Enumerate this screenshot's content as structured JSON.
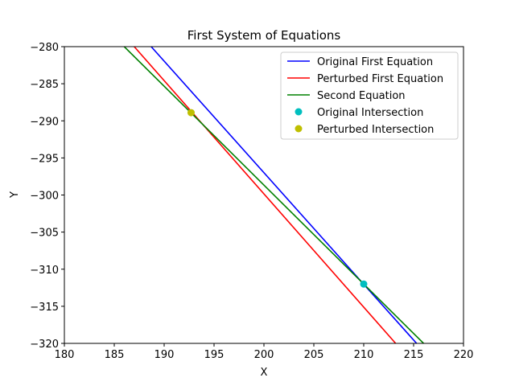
{
  "chart_data": {
    "type": "line",
    "title": "First System of Equations",
    "xlabel": "X",
    "ylabel": "Y",
    "xlim": [
      180,
      220
    ],
    "ylim": [
      -320,
      -280
    ],
    "xticks": [
      180,
      185,
      190,
      195,
      200,
      205,
      210,
      215,
      220
    ],
    "yticks": [
      -280,
      -285,
      -290,
      -295,
      -300,
      -305,
      -310,
      -315,
      -320
    ],
    "grid": false,
    "legend_position": "top-right",
    "series": [
      {
        "name": "Original First Equation",
        "kind": "line",
        "color": "#0000ff",
        "x": [
          188.7,
          215.3
        ],
        "y": [
          -280,
          -320
        ]
      },
      {
        "name": "Perturbed First Equation",
        "kind": "line",
        "color": "#ff0000",
        "x": [
          187.0,
          213.2
        ],
        "y": [
          -280,
          -320
        ]
      },
      {
        "name": "Second Equation",
        "kind": "line",
        "color": "#008000",
        "x": [
          186.0,
          216.0
        ],
        "y": [
          -280,
          -320
        ]
      },
      {
        "name": "Original Intersection",
        "kind": "point",
        "color": "#00bfbf",
        "x": [
          210.0
        ],
        "y": [
          -312.0
        ]
      },
      {
        "name": "Perturbed Intersection",
        "kind": "point",
        "color": "#bfbf00",
        "x": [
          192.7
        ],
        "y": [
          -288.9
        ]
      }
    ]
  }
}
